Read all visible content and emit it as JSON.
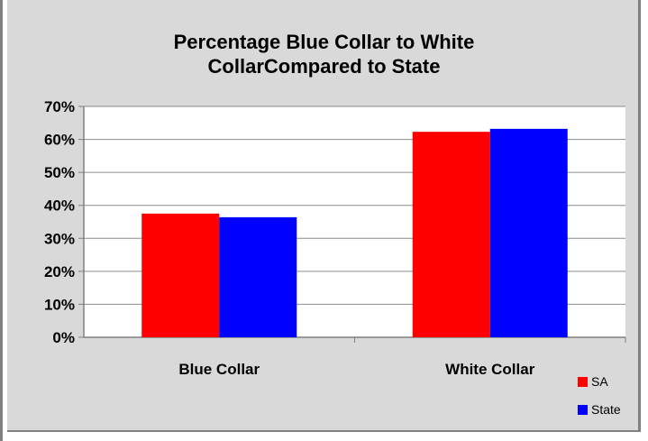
{
  "chart_data": {
    "type": "bar",
    "title_lines": [
      "Percentage Blue Collar to White",
      "CollarCompared to State"
    ],
    "categories": [
      "Blue Collar",
      "White Collar"
    ],
    "series": [
      {
        "name": "SA",
        "values": [
          0.375,
          0.623
        ],
        "color": "#ff0000"
      },
      {
        "name": "State",
        "values": [
          0.364,
          0.632
        ],
        "color": "#0000ff"
      }
    ],
    "y_ticks": [
      "0%",
      "10%",
      "20%",
      "30%",
      "40%",
      "50%",
      "60%",
      "70%"
    ],
    "ylim": [
      0,
      0.7
    ],
    "grid": true,
    "legend_position": "bottom-right",
    "plot_background": "#ffffff",
    "chart_background": "#d9d9d9"
  }
}
